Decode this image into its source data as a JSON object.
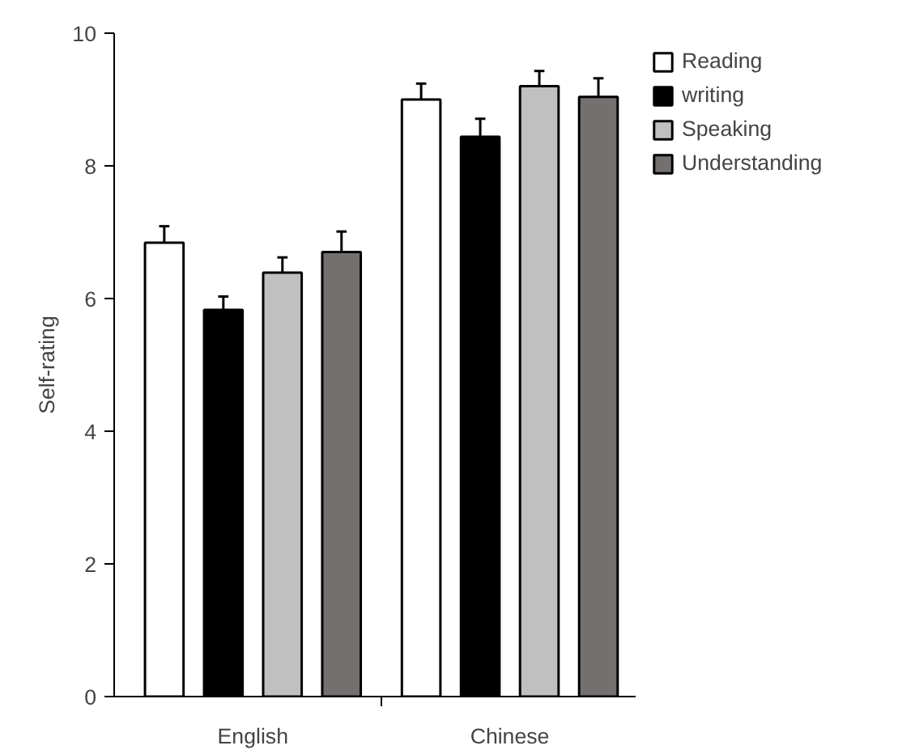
{
  "chart_data": {
    "type": "bar",
    "ylabel": "Self-rating",
    "categories": [
      "English",
      "Chinese"
    ],
    "series": [
      {
        "name": "Reading",
        "color": "#ffffff",
        "values": [
          6.84,
          9.0
        ],
        "errors": [
          0.25,
          0.24
        ]
      },
      {
        "name": "writing",
        "color": "#000000",
        "values": [
          5.83,
          8.44
        ],
        "errors": [
          0.2,
          0.27
        ]
      },
      {
        "name": "Speaking",
        "color": "#c0c0c0",
        "values": [
          6.39,
          9.2
        ],
        "errors": [
          0.23,
          0.23
        ]
      },
      {
        "name": "Understanding",
        "color": "#747070",
        "values": [
          6.7,
          9.04
        ],
        "errors": [
          0.31,
          0.28
        ]
      }
    ],
    "ylim": [
      0,
      10
    ],
    "yticks": [
      0,
      2,
      4,
      6,
      8,
      10
    ],
    "grid": false,
    "legend": "right"
  }
}
